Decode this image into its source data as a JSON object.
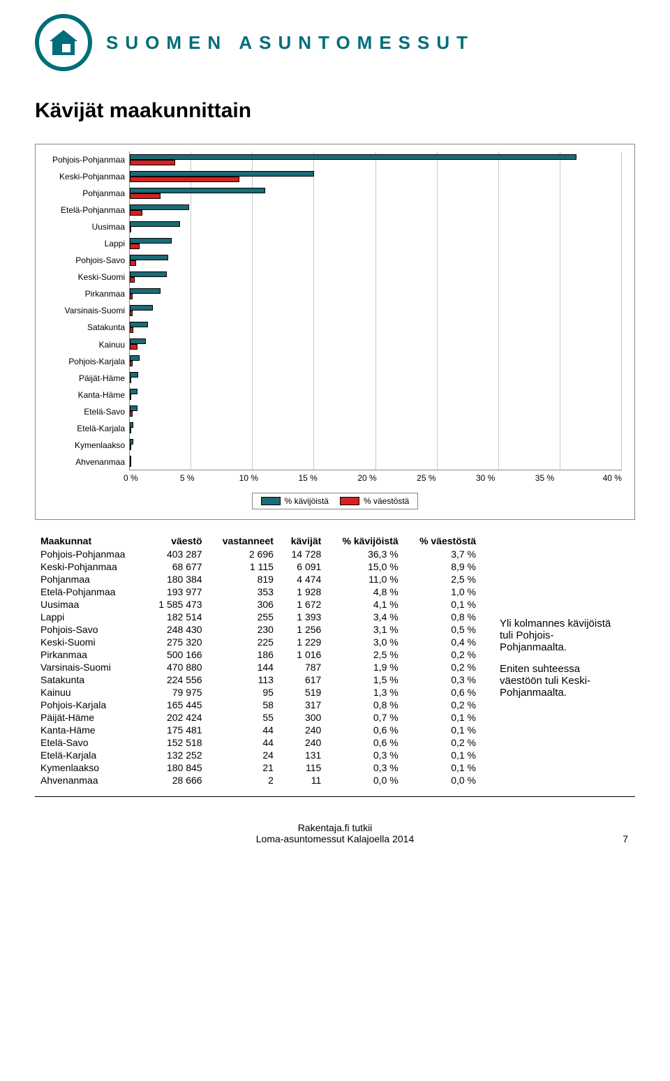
{
  "brand": "SUOMEN ASUNTOMESSUT",
  "title": "Kävijät maakunnittain",
  "chart": {
    "type": "bar-horizontal-grouped",
    "xmin": 0,
    "xmax": 40,
    "xtick_step": 5,
    "xtick_labels": [
      "0 %",
      "5 %",
      "10 %",
      "15 %",
      "20 %",
      "25 %",
      "30 %",
      "35 %",
      "40 %"
    ],
    "series": [
      {
        "name": "% kävijöistä",
        "color": "#1a6b76"
      },
      {
        "name": "% väestöstä",
        "color": "#d22222"
      }
    ],
    "categories": [
      {
        "label": "Pohjois-Pohjanmaa",
        "v1": 36.3,
        "v2": 3.7
      },
      {
        "label": "Keski-Pohjanmaa",
        "v1": 15.0,
        "v2": 8.9
      },
      {
        "label": "Pohjanmaa",
        "v1": 11.0,
        "v2": 2.5
      },
      {
        "label": "Etelä-Pohjanmaa",
        "v1": 4.8,
        "v2": 1.0
      },
      {
        "label": "Uusimaa",
        "v1": 4.1,
        "v2": 0.1
      },
      {
        "label": "Lappi",
        "v1": 3.4,
        "v2": 0.8
      },
      {
        "label": "Pohjois-Savo",
        "v1": 3.1,
        "v2": 0.5
      },
      {
        "label": "Keski-Suomi",
        "v1": 3.0,
        "v2": 0.4
      },
      {
        "label": "Pirkanmaa",
        "v1": 2.5,
        "v2": 0.2
      },
      {
        "label": "Varsinais-Suomi",
        "v1": 1.9,
        "v2": 0.2
      },
      {
        "label": "Satakunta",
        "v1": 1.5,
        "v2": 0.3
      },
      {
        "label": "Kainuu",
        "v1": 1.3,
        "v2": 0.6
      },
      {
        "label": "Pohjois-Karjala",
        "v1": 0.8,
        "v2": 0.2
      },
      {
        "label": "Päijät-Häme",
        "v1": 0.7,
        "v2": 0.1
      },
      {
        "label": "Kanta-Häme",
        "v1": 0.6,
        "v2": 0.1
      },
      {
        "label": "Etelä-Savo",
        "v1": 0.6,
        "v2": 0.2
      },
      {
        "label": "Etelä-Karjala",
        "v1": 0.3,
        "v2": 0.1
      },
      {
        "label": "Kymenlaakso",
        "v1": 0.3,
        "v2": 0.1
      },
      {
        "label": "Ahvenanmaa",
        "v1": 0.0,
        "v2": 0.0
      }
    ],
    "grid_color": "#c8c8c8",
    "border_color": "#888888",
    "label_fontsize": 12
  },
  "table": {
    "columns": [
      "Maakunnat",
      "väestö",
      "vastanneet",
      "kävijät",
      "% kävijöistä",
      "% väestöstä"
    ],
    "rows": [
      [
        "Pohjois-Pohjanmaa",
        "403 287",
        "2 696",
        "14 728",
        "36,3 %",
        "3,7 %"
      ],
      [
        "Keski-Pohjanmaa",
        "68 677",
        "1 115",
        "6 091",
        "15,0 %",
        "8,9 %"
      ],
      [
        "Pohjanmaa",
        "180 384",
        "819",
        "4 474",
        "11,0 %",
        "2,5 %"
      ],
      [
        "Etelä-Pohjanmaa",
        "193 977",
        "353",
        "1 928",
        "4,8 %",
        "1,0 %"
      ],
      [
        "Uusimaa",
        "1 585 473",
        "306",
        "1 672",
        "4,1 %",
        "0,1 %"
      ],
      [
        "Lappi",
        "182 514",
        "255",
        "1 393",
        "3,4 %",
        "0,8 %"
      ],
      [
        "Pohjois-Savo",
        "248 430",
        "230",
        "1 256",
        "3,1 %",
        "0,5 %"
      ],
      [
        "Keski-Suomi",
        "275 320",
        "225",
        "1 229",
        "3,0 %",
        "0,4 %"
      ],
      [
        "Pirkanmaa",
        "500 166",
        "186",
        "1 016",
        "2,5 %",
        "0,2 %"
      ],
      [
        "Varsinais-Suomi",
        "470 880",
        "144",
        "787",
        "1,9 %",
        "0,2 %"
      ],
      [
        "Satakunta",
        "224 556",
        "113",
        "617",
        "1,5 %",
        "0,3 %"
      ],
      [
        "Kainuu",
        "79 975",
        "95",
        "519",
        "1,3 %",
        "0,6 %"
      ],
      [
        "Pohjois-Karjala",
        "165 445",
        "58",
        "317",
        "0,8 %",
        "0,2 %"
      ],
      [
        "Päijät-Häme",
        "202 424",
        "55",
        "300",
        "0,7 %",
        "0,1 %"
      ],
      [
        "Kanta-Häme",
        "175 481",
        "44",
        "240",
        "0,6 %",
        "0,1 %"
      ],
      [
        "Etelä-Savo",
        "152 518",
        "44",
        "240",
        "0,6 %",
        "0,2 %"
      ],
      [
        "Etelä-Karjala",
        "132 252",
        "24",
        "131",
        "0,3 %",
        "0,1 %"
      ],
      [
        "Kymenlaakso",
        "180 845",
        "21",
        "115",
        "0,3 %",
        "0,1 %"
      ],
      [
        "Ahvenanmaa",
        "28 666",
        "2",
        "11",
        "0,0 %",
        "0,0 %"
      ]
    ]
  },
  "sidenote": {
    "p1": "Yli kolmannes kävijöistä tuli Pohjois-Pohjanmaalta.",
    "p2": "Eniten suhteessa väestöön tuli Keski-Pohjanmaalta."
  },
  "footer": {
    "line1": "Rakentaja.fi tutkii",
    "line2": "Loma-asuntomessut Kalajoella 2014",
    "page": "7"
  }
}
